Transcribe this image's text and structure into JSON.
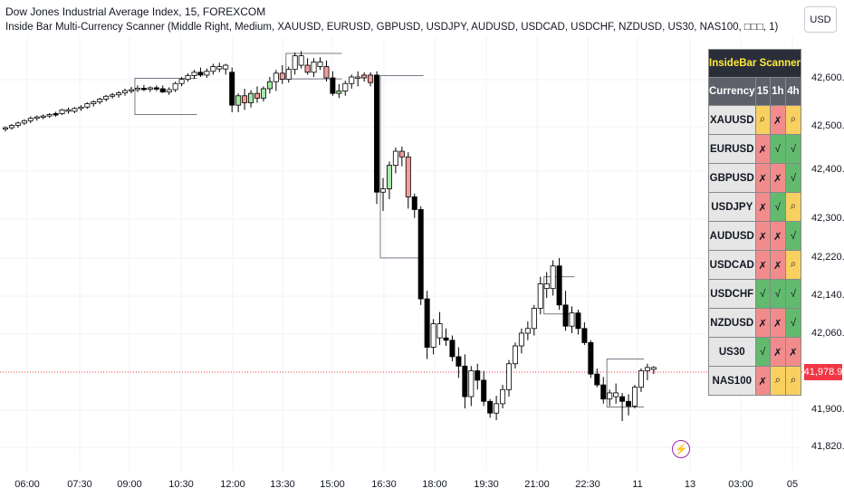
{
  "header": {
    "title": "Dow Jones Industrial Average Index, 15, FOREXCOM",
    "subtitle": "Inside Bar Multi-Currency Scanner (Middle Right, Medium, XAUUSD, EURUSD, GBPUSD, USDJPY, AUDUSD, USDCAD, USDCHF, NZDUSD, US30, NAS100, □□□, 1)"
  },
  "currency_button": "USD",
  "price_axis": [
    "42,600.0",
    "42,500.0",
    "42,400.0",
    "42,300.0",
    "42,220.0",
    "42,140.0",
    "42,060.0",
    "41,900.0",
    "41,820.0"
  ],
  "current_price": "41,978.9",
  "time_axis": [
    "06:00",
    "07:30",
    "09:00",
    "10:30",
    "12:00",
    "13:30",
    "15:00",
    "16:30",
    "18:00",
    "19:30",
    "21:00",
    "22:30",
    "11",
    "13",
    "03:00",
    "05"
  ],
  "colors": {
    "red": "#f28c8c",
    "green": "#62ba6e",
    "yellow": "#f7d060",
    "accent": "#f23645",
    "header_bg": "#2a2e39",
    "title_text": "#ffeb3b"
  },
  "scanner": {
    "title": "InsideBar Scanner",
    "columns": [
      "Currency",
      "15",
      "1h",
      "4h"
    ],
    "rows": [
      {
        "symbol": "XAUUSD",
        "cells": [
          {
            "s": "⌕",
            "c": "yellow"
          },
          {
            "s": "✗",
            "c": "red"
          },
          {
            "s": "⌕",
            "c": "yellow"
          }
        ]
      },
      {
        "symbol": "EURUSD",
        "cells": [
          {
            "s": "✗",
            "c": "red"
          },
          {
            "s": "√",
            "c": "green"
          },
          {
            "s": "√",
            "c": "green"
          }
        ]
      },
      {
        "symbol": "GBPUSD",
        "cells": [
          {
            "s": "✗",
            "c": "red"
          },
          {
            "s": "✗",
            "c": "red"
          },
          {
            "s": "√",
            "c": "green"
          }
        ]
      },
      {
        "symbol": "USDJPY",
        "cells": [
          {
            "s": "✗",
            "c": "red"
          },
          {
            "s": "√",
            "c": "green"
          },
          {
            "s": "⌕",
            "c": "yellow"
          }
        ]
      },
      {
        "symbol": "AUDUSD",
        "cells": [
          {
            "s": "✗",
            "c": "red"
          },
          {
            "s": "✗",
            "c": "red"
          },
          {
            "s": "√",
            "c": "green"
          }
        ]
      },
      {
        "symbol": "USDCAD",
        "cells": [
          {
            "s": "✗",
            "c": "red"
          },
          {
            "s": "✗",
            "c": "red"
          },
          {
            "s": "⌕",
            "c": "yellow"
          }
        ]
      },
      {
        "symbol": "USDCHF",
        "cells": [
          {
            "s": "√",
            "c": "green"
          },
          {
            "s": "√",
            "c": "green"
          },
          {
            "s": "√",
            "c": "green"
          }
        ]
      },
      {
        "symbol": "NZDUSD",
        "cells": [
          {
            "s": "✗",
            "c": "red"
          },
          {
            "s": "✗",
            "c": "red"
          },
          {
            "s": "√",
            "c": "green"
          }
        ]
      },
      {
        "symbol": "US30",
        "cells": [
          {
            "s": "√",
            "c": "green"
          },
          {
            "s": "✗",
            "c": "red"
          },
          {
            "s": "✗",
            "c": "red"
          }
        ]
      },
      {
        "symbol": "NAS100",
        "cells": [
          {
            "s": "✗",
            "c": "red"
          },
          {
            "s": "⌕",
            "c": "yellow"
          },
          {
            "s": "⌕",
            "c": "yellow"
          }
        ]
      }
    ]
  },
  "indicator_icon": "lightning-icon",
  "chart_data": {
    "type": "candlestick",
    "y_range": [
      41780,
      42680
    ],
    "candles": [
      [
        42489,
        42495,
        42484,
        42492,
        "n"
      ],
      [
        42492,
        42500,
        42488,
        42497,
        "n"
      ],
      [
        42497,
        42505,
        42492,
        42502,
        "n"
      ],
      [
        42502,
        42510,
        42498,
        42507,
        "n"
      ],
      [
        42507,
        42516,
        42502,
        42512,
        "n"
      ],
      [
        42512,
        42518,
        42507,
        42515,
        "n"
      ],
      [
        42515,
        42520,
        42510,
        42517,
        "n"
      ],
      [
        42517,
        42523,
        42513,
        42520,
        "n"
      ],
      [
        42520,
        42526,
        42515,
        42522,
        "b"
      ],
      [
        42522,
        42532,
        42519,
        42530,
        "n"
      ],
      [
        42530,
        42535,
        42522,
        42527,
        "n"
      ],
      [
        42527,
        42536,
        42523,
        42533,
        "n"
      ],
      [
        42533,
        42540,
        42528,
        42536,
        "n"
      ],
      [
        42536,
        42546,
        42532,
        42543,
        "n"
      ],
      [
        42543,
        42550,
        42537,
        42547,
        "n"
      ],
      [
        42547,
        42556,
        42542,
        42553,
        "n"
      ],
      [
        42553,
        42562,
        42548,
        42559,
        "n"
      ],
      [
        42559,
        42566,
        42554,
        42562,
        "n"
      ],
      [
        42562,
        42570,
        42556,
        42566,
        "n"
      ],
      [
        42566,
        42575,
        42560,
        42571,
        "n"
      ],
      [
        42571,
        42579,
        42565,
        42573,
        "n"
      ],
      [
        42573,
        42582,
        42568,
        42576,
        "n"
      ],
      [
        42576,
        42583,
        42570,
        42574,
        "b"
      ],
      [
        42574,
        42580,
        42568,
        42577,
        "n"
      ],
      [
        42577,
        42582,
        42570,
        42575,
        "b"
      ],
      [
        42575,
        42582,
        42566,
        42568,
        "b"
      ],
      [
        42568,
        42578,
        42562,
        42573,
        "n"
      ],
      [
        42573,
        42590,
        42568,
        42586,
        "n"
      ],
      [
        42586,
        42600,
        42580,
        42595,
        "n"
      ],
      [
        42595,
        42608,
        42590,
        42603,
        "n"
      ],
      [
        42603,
        42615,
        42596,
        42610,
        "n"
      ],
      [
        42610,
        42620,
        42600,
        42604,
        "b"
      ],
      [
        42604,
        42618,
        42598,
        42612,
        "n"
      ],
      [
        42612,
        42628,
        42605,
        42622,
        "n"
      ],
      [
        42622,
        42630,
        42610,
        42617,
        "n"
      ],
      [
        42617,
        42628,
        42605,
        42625,
        "n"
      ],
      [
        42610,
        42620,
        42525,
        42540,
        "b"
      ],
      [
        42540,
        42565,
        42525,
        42560,
        "g"
      ],
      [
        42560,
        42575,
        42530,
        42545,
        "r"
      ],
      [
        42545,
        42572,
        42535,
        42565,
        "g"
      ],
      [
        42565,
        42580,
        42545,
        42555,
        "r"
      ],
      [
        42555,
        42580,
        42548,
        42575,
        "g"
      ],
      [
        42575,
        42600,
        42565,
        42590,
        "g"
      ],
      [
        42590,
        42615,
        42570,
        42608,
        "n"
      ],
      [
        42608,
        42625,
        42585,
        42595,
        "r"
      ],
      [
        42595,
        42622,
        42588,
        42616,
        "n"
      ],
      [
        42616,
        42652,
        42605,
        42645,
        "n"
      ],
      [
        42645,
        42655,
        42618,
        42625,
        "n"
      ],
      [
        42625,
        42640,
        42605,
        42610,
        "r"
      ],
      [
        42610,
        42640,
        42600,
        42632,
        "n"
      ],
      [
        42632,
        42642,
        42615,
        42622,
        "n"
      ],
      [
        42622,
        42635,
        42590,
        42598,
        "r"
      ],
      [
        42598,
        42612,
        42560,
        42565,
        "b"
      ],
      [
        42565,
        42585,
        42555,
        42570,
        "g"
      ],
      [
        42570,
        42592,
        42560,
        42586,
        "n"
      ],
      [
        42586,
        42605,
        42575,
        42600,
        "n"
      ],
      [
        42600,
        42612,
        42580,
        42598,
        "n"
      ],
      [
        42598,
        42610,
        42590,
        42604,
        "r"
      ],
      [
        42604,
        42610,
        42580,
        42588,
        "r"
      ],
      [
        42604,
        42612,
        42330,
        42355,
        "b"
      ],
      [
        42355,
        42385,
        42315,
        42362,
        "n"
      ],
      [
        42362,
        42420,
        42340,
        42412,
        "g"
      ],
      [
        42412,
        42450,
        42395,
        42442,
        "n"
      ],
      [
        42442,
        42452,
        42410,
        42430,
        "r"
      ],
      [
        42430,
        42440,
        42320,
        42345,
        "r"
      ],
      [
        42345,
        42352,
        42300,
        42318,
        "b"
      ],
      [
        42318,
        42325,
        42115,
        42128,
        "b"
      ],
      [
        42128,
        42145,
        42000,
        42025,
        "b"
      ],
      [
        42025,
        42085,
        42010,
        42075,
        "n"
      ],
      [
        42075,
        42100,
        42030,
        42045,
        "n"
      ],
      [
        42045,
        42065,
        42028,
        42040,
        "b"
      ],
      [
        42040,
        42050,
        41995,
        42005,
        "b"
      ],
      [
        42005,
        42025,
        41960,
        41985,
        "b"
      ],
      [
        41985,
        42010,
        41895,
        41920,
        "b"
      ],
      [
        41920,
        41985,
        41900,
        41975,
        "n"
      ],
      [
        41975,
        41990,
        41935,
        41955,
        "b"
      ],
      [
        41955,
        41975,
        41900,
        41910,
        "b"
      ],
      [
        41910,
        41915,
        41875,
        41885,
        "b"
      ],
      [
        41885,
        41922,
        41870,
        41905,
        "n"
      ],
      [
        41905,
        41945,
        41895,
        41935,
        "n"
      ],
      [
        41935,
        41998,
        41920,
        41990,
        "n"
      ],
      [
        41990,
        42035,
        41980,
        42028,
        "n"
      ],
      [
        42028,
        42065,
        42012,
        42055,
        "n"
      ],
      [
        42055,
        42080,
        42040,
        42065,
        "n"
      ],
      [
        42065,
        42115,
        42050,
        42108,
        "n"
      ],
      [
        42108,
        42175,
        42095,
        42160,
        "n"
      ],
      [
        42160,
        42185,
        42130,
        42150,
        "n"
      ],
      [
        42150,
        42210,
        42135,
        42198,
        "n"
      ],
      [
        42198,
        42215,
        42105,
        42115,
        "b"
      ],
      [
        42115,
        42145,
        42060,
        42070,
        "b"
      ],
      [
        42070,
        42112,
        42055,
        42098,
        "n"
      ],
      [
        42098,
        42105,
        42052,
        42065,
        "b"
      ],
      [
        42065,
        42078,
        42030,
        42035,
        "b"
      ],
      [
        42035,
        42040,
        41960,
        41968,
        "b"
      ],
      [
        41968,
        41980,
        41940,
        41945,
        "b"
      ],
      [
        41945,
        41962,
        41905,
        41915,
        "b"
      ],
      [
        41915,
        41935,
        41900,
        41928,
        "n"
      ],
      [
        41928,
        41948,
        41905,
        41920,
        "n"
      ],
      [
        41920,
        41928,
        41868,
        41910,
        "b"
      ],
      [
        41910,
        41925,
        41880,
        41900,
        "b"
      ],
      [
        41900,
        41945,
        41895,
        41940,
        "n"
      ],
      [
        41940,
        41980,
        41930,
        41975,
        "n"
      ],
      [
        41975,
        41990,
        41955,
        41982,
        "n"
      ],
      [
        41982,
        41985,
        41968,
        41978,
        "n"
      ]
    ],
    "overlay_boxes": [
      {
        "x1": 21,
        "x2": 30,
        "high": 42597,
        "low": 42520
      },
      {
        "x1": 45,
        "x2": 53,
        "high": 42650,
        "low": 42596
      },
      {
        "x1": 60,
        "x2": 66,
        "high": 42603,
        "low": 42215
      },
      {
        "x1": 86,
        "x2": 90,
        "high": 42175,
        "low": 42096
      },
      {
        "x1": 96,
        "x2": 101,
        "high": 42000,
        "low": 41898
      }
    ]
  }
}
